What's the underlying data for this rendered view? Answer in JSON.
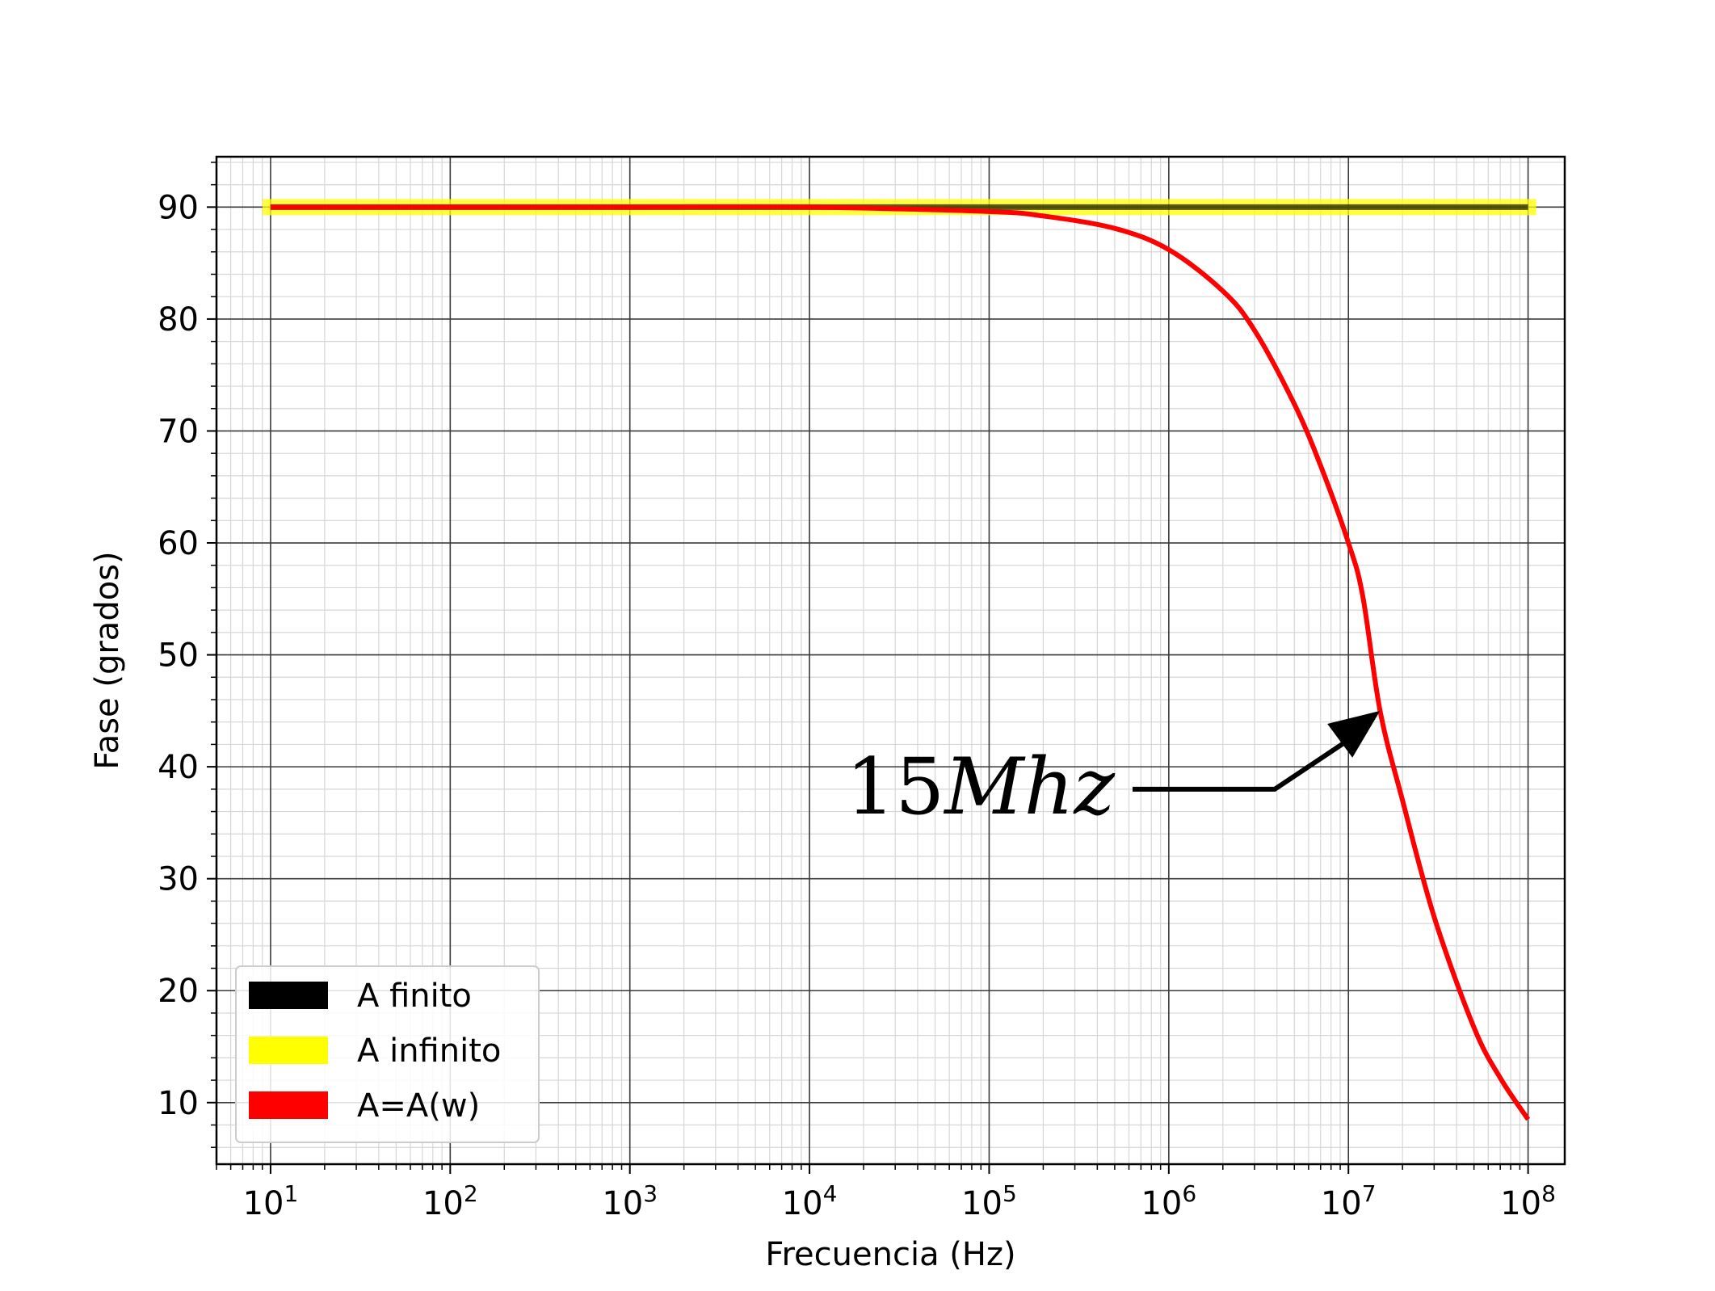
{
  "chart_data": {
    "type": "line",
    "xlabel": "Frecuencia (Hz)",
    "ylabel": "Fase (grados)",
    "x_scale": "log",
    "xlim": [
      5,
      160000000
    ],
    "ylim": [
      4.5,
      94.5
    ],
    "x_ticks": [
      {
        "value": 10,
        "base": "10",
        "exp": "1"
      },
      {
        "value": 100,
        "base": "10",
        "exp": "2"
      },
      {
        "value": 1000,
        "base": "10",
        "exp": "3"
      },
      {
        "value": 10000,
        "base": "10",
        "exp": "4"
      },
      {
        "value": 100000,
        "base": "10",
        "exp": "5"
      },
      {
        "value": 1000000,
        "base": "10",
        "exp": "6"
      },
      {
        "value": 10000000,
        "base": "10",
        "exp": "7"
      },
      {
        "value": 100000000,
        "base": "10",
        "exp": "8"
      }
    ],
    "y_ticks": [
      {
        "value": 10,
        "label": "10"
      },
      {
        "value": 20,
        "label": "20"
      },
      {
        "value": 30,
        "label": "30"
      },
      {
        "value": 40,
        "label": "40"
      },
      {
        "value": 50,
        "label": "50"
      },
      {
        "value": 60,
        "label": "60"
      },
      {
        "value": 70,
        "label": "70"
      },
      {
        "value": 80,
        "label": "80"
      },
      {
        "value": 90,
        "label": "90"
      }
    ],
    "grid": {
      "major": true,
      "minor": true
    },
    "legend_position": "lower-left",
    "series": [
      {
        "name": "A finito",
        "color": "#000000",
        "x": [
          10,
          100000000
        ],
        "y": [
          90,
          90
        ]
      },
      {
        "name": "A infinito",
        "color": "#ffff00",
        "x": [
          10,
          100000000
        ],
        "y": [
          90,
          90
        ]
      },
      {
        "name": "A=A(w)",
        "color": "#ff0000",
        "x": [
          10,
          100,
          1000,
          10000,
          100000,
          200000,
          500000,
          1000000,
          2000000,
          3000000,
          5000000,
          7000000,
          10000000,
          12000000,
          15000000,
          20000000,
          30000000,
          50000000,
          70000000,
          100000000
        ],
        "y": [
          90,
          90,
          90,
          90,
          89.6,
          89.2,
          88.1,
          86.2,
          82.5,
          79.0,
          72.4,
          66.9,
          60.0,
          55.3,
          45.0,
          37.0,
          26.6,
          16.7,
          12.2,
          8.5
        ]
      }
    ],
    "annotations": [
      {
        "text_digits": "15",
        "text_italic": "Mhz",
        "points_to": {
          "x": 15000000,
          "y": 45
        }
      }
    ]
  }
}
